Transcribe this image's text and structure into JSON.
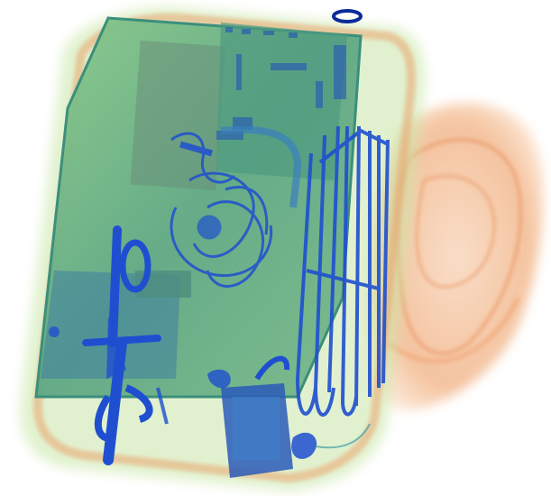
{
  "scan": {
    "kind": "x-ray baggage scan",
    "palette": {
      "background": "#ffffff",
      "organic_orange": "#f0a070",
      "organic_light": "#f7c9a3",
      "mixed_green": "#9cd08a",
      "mixed_dark": "#5aa07a",
      "metal_blue": "#1f4fd0",
      "metal_dark": "#0d2a9a",
      "board_teal": "#3f8f8c"
    },
    "objects": [
      {
        "name": "laptop",
        "material": "mixed"
      },
      {
        "name": "scissors",
        "material": "metal"
      },
      {
        "name": "coat-hangers",
        "material": "metal"
      },
      {
        "name": "cable-bundle",
        "material": "metal"
      },
      {
        "name": "charger",
        "material": "metal"
      },
      {
        "name": "soft-bag",
        "material": "organic"
      }
    ]
  }
}
